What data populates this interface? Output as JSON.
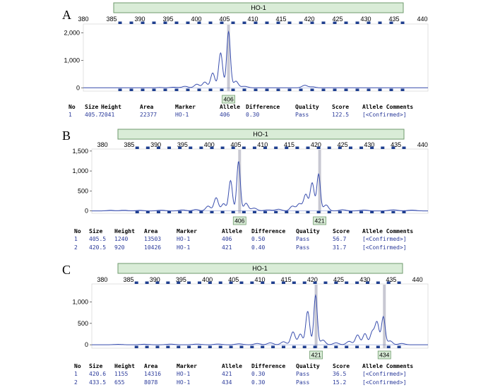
{
  "colors": {
    "trace": "#3a4fae",
    "marker_fill": "#d9ecd7",
    "marker_stroke": "#6f9a6c",
    "allele_bar": "#c8c8d2",
    "bin_mark": "#1f3f8f",
    "baseline": "#4a63c0"
  },
  "table_headers": [
    "No",
    "Size",
    "Height",
    "Area",
    "Marker",
    "Allele",
    "Difference",
    "Quality",
    "Score",
    "Allele Comments"
  ],
  "chart_data": [
    {
      "type": "line",
      "panel": "A",
      "marker_name": "HO-1",
      "x_ticks": [
        380,
        385,
        390,
        395,
        400,
        405,
        410,
        415,
        420,
        425,
        430,
        435,
        440
      ],
      "y_ticks": [
        0,
        1000,
        2000
      ],
      "y_tick_labels": [
        "0",
        "1,000",
        "2,000"
      ],
      "xlim": [
        380,
        441
      ],
      "ylim": [
        -120,
        2320
      ],
      "alleles": [
        406
      ],
      "peaks": [
        {
          "size": 393.5,
          "height": 10,
          "width": 0.6
        },
        {
          "size": 396.0,
          "height": 22,
          "width": 0.6
        },
        {
          "size": 398.0,
          "height": 55,
          "width": 0.5
        },
        {
          "size": 400.1,
          "height": 130,
          "width": 0.45
        },
        {
          "size": 401.5,
          "height": 210,
          "width": 0.4
        },
        {
          "size": 402.9,
          "height": 540,
          "width": 0.38
        },
        {
          "size": 404.3,
          "height": 1270,
          "width": 0.35
        },
        {
          "size": 405.7,
          "height": 2041,
          "width": 0.33
        },
        {
          "size": 407.0,
          "height": 240,
          "width": 0.4
        },
        {
          "size": 408.5,
          "height": 55,
          "width": 0.6
        },
        {
          "size": 419.2,
          "height": 90,
          "width": 0.5
        },
        {
          "size": 420.6,
          "height": 35,
          "width": 0.5
        }
      ],
      "rows": [
        {
          "no": "1",
          "size": "405.7",
          "height": "2041",
          "area": "22377",
          "marker": "HO-1",
          "allele": "406",
          "difference": "0.30",
          "quality": "Pass",
          "score": "122.5",
          "comments": "[<Confirmed>]"
        }
      ]
    },
    {
      "type": "line",
      "panel": "B",
      "marker_name": "HO-1",
      "x_ticks": [
        380,
        385,
        390,
        395,
        400,
        405,
        410,
        415,
        420,
        425,
        430,
        435,
        440
      ],
      "y_ticks": [
        0,
        500,
        1000,
        1500
      ],
      "y_tick_labels": [
        "0",
        "500",
        "1,000",
        "1,500"
      ],
      "xlim": [
        378,
        441
      ],
      "ylim": [
        -60,
        1550
      ],
      "alleles": [
        406,
        421
      ],
      "peaks": [
        {
          "size": 381.5,
          "height": 14,
          "width": 0.7
        },
        {
          "size": 384.0,
          "height": 16,
          "width": 0.7
        },
        {
          "size": 387.0,
          "height": 14,
          "width": 0.7
        },
        {
          "size": 391.0,
          "height": 18,
          "width": 0.7
        },
        {
          "size": 395.0,
          "height": 25,
          "width": 0.6
        },
        {
          "size": 397.5,
          "height": 35,
          "width": 0.55
        },
        {
          "size": 399.8,
          "height": 120,
          "width": 0.45
        },
        {
          "size": 401.3,
          "height": 330,
          "width": 0.4
        },
        {
          "size": 402.7,
          "height": 180,
          "width": 0.4
        },
        {
          "size": 404.0,
          "height": 760,
          "width": 0.35
        },
        {
          "size": 405.5,
          "height": 1240,
          "width": 0.33
        },
        {
          "size": 406.9,
          "height": 190,
          "width": 0.4
        },
        {
          "size": 408.4,
          "height": 70,
          "width": 0.55
        },
        {
          "size": 411.0,
          "height": 25,
          "width": 0.7
        },
        {
          "size": 413.0,
          "height": 40,
          "width": 0.6
        },
        {
          "size": 415.6,
          "height": 120,
          "width": 0.45
        },
        {
          "size": 416.9,
          "height": 180,
          "width": 0.45
        },
        {
          "size": 418.1,
          "height": 410,
          "width": 0.4
        },
        {
          "size": 419.3,
          "height": 700,
          "width": 0.38
        },
        {
          "size": 420.5,
          "height": 920,
          "width": 0.33
        },
        {
          "size": 421.9,
          "height": 150,
          "width": 0.45
        },
        {
          "size": 425.0,
          "height": 30,
          "width": 0.6
        },
        {
          "size": 429.0,
          "height": 22,
          "width": 0.7
        },
        {
          "size": 434.5,
          "height": 28,
          "width": 0.8
        },
        {
          "size": 438.0,
          "height": 20,
          "width": 0.8
        }
      ],
      "rows": [
        {
          "no": "1",
          "size": "405.5",
          "height": "1240",
          "area": "13503",
          "marker": "HO-1",
          "allele": "406",
          "difference": "0.50",
          "quality": "Pass",
          "score": "56.7",
          "comments": "[<Confirmed>]"
        },
        {
          "no": "2",
          "size": "420.5",
          "height": "920",
          "area": "10426",
          "marker": "HO-1",
          "allele": "421",
          "difference": "0.40",
          "quality": "Pass",
          "score": "31.7",
          "comments": "[<Confirmed>]"
        }
      ]
    },
    {
      "type": "line",
      "panel": "C",
      "marker_name": "HO-1",
      "x_ticks": [
        380,
        385,
        390,
        395,
        400,
        405,
        410,
        415,
        420,
        425,
        430,
        435,
        440
      ],
      "y_ticks": [
        0,
        500,
        1000
      ],
      "y_tick_labels": [
        "0",
        "500",
        "1,000"
      ],
      "xlim": [
        378,
        442
      ],
      "ylim": [
        -80,
        1420
      ],
      "alleles": [
        421,
        434
      ],
      "peaks": [
        {
          "size": 383.0,
          "height": 10,
          "width": 0.8
        },
        {
          "size": 388.0,
          "height": 12,
          "width": 0.8
        },
        {
          "size": 393.0,
          "height": 14,
          "width": 0.8
        },
        {
          "size": 398.0,
          "height": 15,
          "width": 0.8
        },
        {
          "size": 402.0,
          "height": 18,
          "width": 0.7
        },
        {
          "size": 406.0,
          "height": 22,
          "width": 0.7
        },
        {
          "size": 409.5,
          "height": 30,
          "width": 0.6
        },
        {
          "size": 412.0,
          "height": 45,
          "width": 0.55
        },
        {
          "size": 414.5,
          "height": 70,
          "width": 0.5
        },
        {
          "size": 416.3,
          "height": 300,
          "width": 0.42
        },
        {
          "size": 417.7,
          "height": 250,
          "width": 0.4
        },
        {
          "size": 419.1,
          "height": 780,
          "width": 0.38
        },
        {
          "size": 420.6,
          "height": 1155,
          "width": 0.33
        },
        {
          "size": 422.0,
          "height": 110,
          "width": 0.45
        },
        {
          "size": 424.5,
          "height": 45,
          "width": 0.55
        },
        {
          "size": 427.0,
          "height": 80,
          "width": 0.5
        },
        {
          "size": 428.6,
          "height": 230,
          "width": 0.42
        },
        {
          "size": 430.0,
          "height": 260,
          "width": 0.4
        },
        {
          "size": 431.4,
          "height": 300,
          "width": 0.4
        },
        {
          "size": 432.3,
          "height": 520,
          "width": 0.38
        },
        {
          "size": 433.5,
          "height": 655,
          "width": 0.35
        },
        {
          "size": 434.8,
          "height": 90,
          "width": 0.45
        },
        {
          "size": 437.0,
          "height": 30,
          "width": 0.6
        }
      ],
      "rows": [
        {
          "no": "1",
          "size": "420.6",
          "height": "1155",
          "area": "14316",
          "marker": "HO-1",
          "allele": "421",
          "difference": "0.30",
          "quality": "Pass",
          "score": "36.5",
          "comments": "[<Confirmed>]"
        },
        {
          "no": "2",
          "size": "433.5",
          "height": "655",
          "area": "8078",
          "marker": "HO-1",
          "allele": "434",
          "difference": "0.30",
          "quality": "Pass",
          "score": "15.2",
          "comments": "[<Confirmed>]"
        }
      ]
    }
  ]
}
